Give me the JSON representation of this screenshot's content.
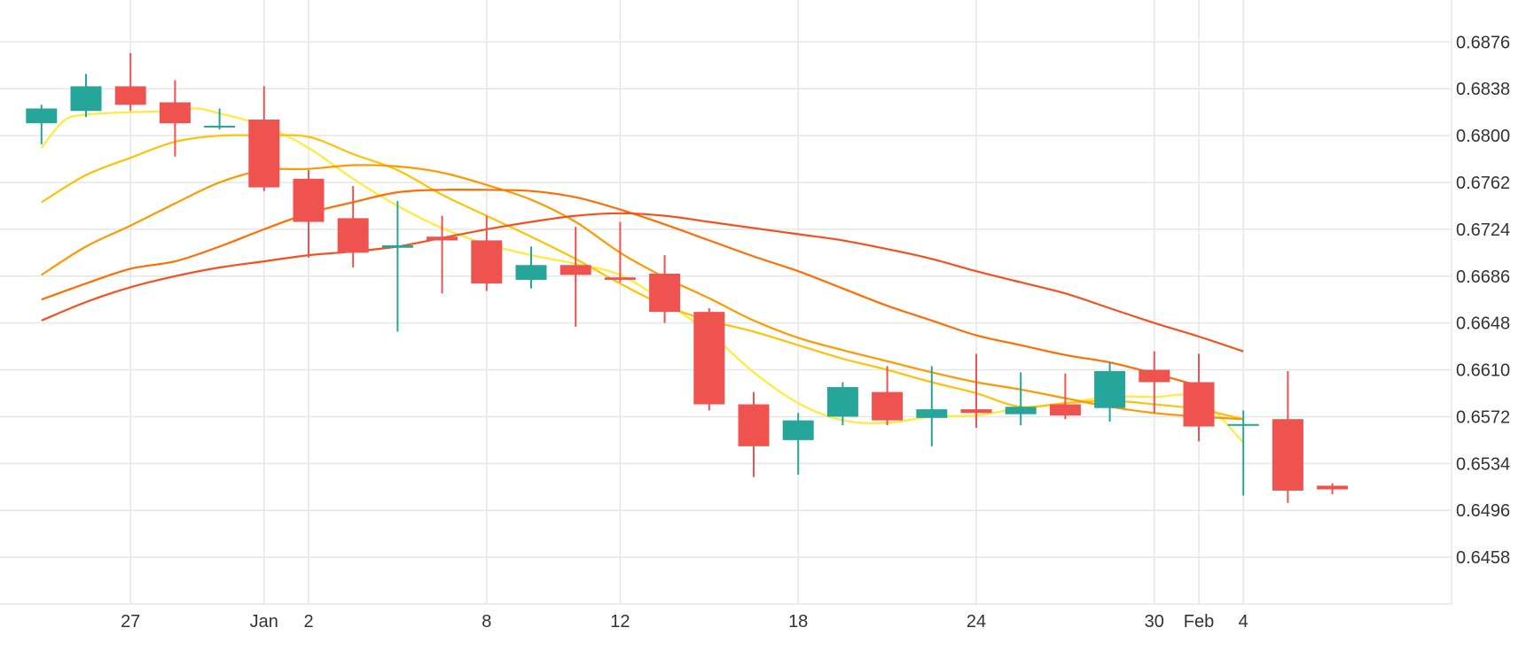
{
  "chart_data": {
    "type": "candlestick",
    "title": "",
    "xlabel": "",
    "ylabel": "",
    "ylim": [
      0.642,
      0.691
    ],
    "y_ticks": [
      0.6876,
      0.6838,
      0.68,
      0.6762,
      0.6724,
      0.6686,
      0.6648,
      0.661,
      0.6572,
      0.6534,
      0.6496,
      0.6458
    ],
    "x_ticks": [
      {
        "label": "27",
        "pos": 1.0
      },
      {
        "label": "Jan",
        "pos": 4.0
      },
      {
        "label": "2",
        "pos": 5.0
      },
      {
        "label": "8",
        "pos": 9.0
      },
      {
        "label": "12",
        "pos": 12.0
      },
      {
        "label": "18",
        "pos": 16.0
      },
      {
        "label": "24",
        "pos": 20.0
      },
      {
        "label": "30",
        "pos": 24.0
      },
      {
        "label": "Feb",
        "pos": 25.0
      },
      {
        "label": "4",
        "pos": 26.0
      }
    ],
    "grid": true,
    "legend": "none",
    "colors": {
      "up": "#26a69a",
      "down": "#ef5350",
      "grid": "#e6e6e6",
      "text": "#333333"
    },
    "candles": [
      {
        "o": 0.681,
        "h": 0.6825,
        "l": 0.6793,
        "c": 0.6822
      },
      {
        "o": 0.682,
        "h": 0.685,
        "l": 0.6815,
        "c": 0.684
      },
      {
        "o": 0.684,
        "h": 0.6867,
        "l": 0.682,
        "c": 0.6825
      },
      {
        "o": 0.6827,
        "h": 0.6845,
        "l": 0.6783,
        "c": 0.681
      },
      {
        "o": 0.6808,
        "h": 0.6822,
        "l": 0.6805,
        "c": 0.6808
      },
      {
        "o": 0.6813,
        "h": 0.684,
        "l": 0.6755,
        "c": 0.6758
      },
      {
        "o": 0.6765,
        "h": 0.6772,
        "l": 0.6701,
        "c": 0.673
      },
      {
        "o": 0.6733,
        "h": 0.6759,
        "l": 0.6693,
        "c": 0.6705
      },
      {
        "o": 0.6709,
        "h": 0.6747,
        "l": 0.6641,
        "c": 0.6711
      },
      {
        "o": 0.6718,
        "h": 0.6735,
        "l": 0.6672,
        "c": 0.6715
      },
      {
        "o": 0.6715,
        "h": 0.6735,
        "l": 0.6674,
        "c": 0.668
      },
      {
        "o": 0.6683,
        "h": 0.671,
        "l": 0.6676,
        "c": 0.6695
      },
      {
        "o": 0.6695,
        "h": 0.6726,
        "l": 0.6645,
        "c": 0.6687
      },
      {
        "o": 0.6685,
        "h": 0.673,
        "l": 0.6681,
        "c": 0.6683
      },
      {
        "o": 0.6688,
        "h": 0.6703,
        "l": 0.6648,
        "c": 0.6657
      },
      {
        "o": 0.6657,
        "h": 0.666,
        "l": 0.6577,
        "c": 0.6582
      },
      {
        "o": 0.6582,
        "h": 0.6592,
        "l": 0.6523,
        "c": 0.6548
      },
      {
        "o": 0.6553,
        "h": 0.6575,
        "l": 0.6525,
        "c": 0.6569
      },
      {
        "o": 0.6572,
        "h": 0.66,
        "l": 0.6565,
        "c": 0.6596
      },
      {
        "o": 0.6592,
        "h": 0.6613,
        "l": 0.6565,
        "c": 0.6569
      },
      {
        "o": 0.6571,
        "h": 0.6613,
        "l": 0.6548,
        "c": 0.6578
      },
      {
        "o": 0.6578,
        "h": 0.6623,
        "l": 0.6563,
        "c": 0.6575
      },
      {
        "o": 0.6574,
        "h": 0.6608,
        "l": 0.6565,
        "c": 0.658
      },
      {
        "o": 0.6582,
        "h": 0.6607,
        "l": 0.657,
        "c": 0.6573
      },
      {
        "o": 0.6579,
        "h": 0.6616,
        "l": 0.6568,
        "c": 0.6609
      },
      {
        "o": 0.661,
        "h": 0.6625,
        "l": 0.6575,
        "c": 0.66
      },
      {
        "o": 0.66,
        "h": 0.6623,
        "l": 0.6552,
        "c": 0.6564
      },
      {
        "o": 0.6566,
        "h": 0.6577,
        "l": 0.6508,
        "c": 0.6566
      },
      {
        "o": 0.657,
        "h": 0.6609,
        "l": 0.6502,
        "c": 0.6512
      },
      {
        "o": 0.6516,
        "h": 0.6518,
        "l": 0.6509,
        "c": 0.6513
      }
    ],
    "series": [
      {
        "color": "#ffeb3b",
        "points": [
          [
            -1.0,
            0.679
          ],
          [
            -0.5,
            0.6812
          ],
          [
            0.0,
            0.6817
          ],
          [
            1.0,
            0.6819
          ],
          [
            2.0,
            0.682
          ],
          [
            2.5,
            0.6822
          ],
          [
            3.0,
            0.6818
          ],
          [
            4.0,
            0.6808
          ],
          [
            5.0,
            0.679
          ],
          [
            6.0,
            0.6765
          ],
          [
            7.0,
            0.6743
          ],
          [
            8.0,
            0.6725
          ],
          [
            9.0,
            0.6712
          ],
          [
            10.0,
            0.6703
          ],
          [
            11.0,
            0.6696
          ],
          [
            12.0,
            0.6687
          ],
          [
            13.0,
            0.6665
          ],
          [
            14.0,
            0.664
          ],
          [
            15.0,
            0.6608
          ],
          [
            16.0,
            0.6583
          ],
          [
            17.0,
            0.6569
          ],
          [
            18.0,
            0.6567
          ],
          [
            19.0,
            0.6572
          ],
          [
            20.0,
            0.6573
          ],
          [
            21.0,
            0.6579
          ],
          [
            22.0,
            0.6583
          ],
          [
            23.0,
            0.6588
          ],
          [
            24.0,
            0.6588
          ],
          [
            25.0,
            0.6587
          ],
          [
            26.0,
            0.6551
          ]
        ]
      },
      {
        "color": "#ffc107",
        "points": [
          [
            -1.0,
            0.6746
          ],
          [
            0.0,
            0.6768
          ],
          [
            1.0,
            0.6782
          ],
          [
            2.0,
            0.6795
          ],
          [
            3.0,
            0.68
          ],
          [
            4.0,
            0.68
          ],
          [
            5.0,
            0.6799
          ],
          [
            6.0,
            0.6785
          ],
          [
            7.0,
            0.6772
          ],
          [
            8.0,
            0.6752
          ],
          [
            9.0,
            0.6735
          ],
          [
            10.0,
            0.6718
          ],
          [
            11.0,
            0.67
          ],
          [
            12.0,
            0.668
          ],
          [
            13.0,
            0.6662
          ],
          [
            14.0,
            0.665
          ],
          [
            15.0,
            0.6641
          ],
          [
            16.0,
            0.663
          ],
          [
            17.0,
            0.6619
          ],
          [
            18.0,
            0.661
          ],
          [
            19.0,
            0.66
          ],
          [
            20.0,
            0.6591
          ],
          [
            21.0,
            0.658
          ],
          [
            22.0,
            0.6583
          ],
          [
            23.0,
            0.6585
          ],
          [
            24.0,
            0.6582
          ],
          [
            25.0,
            0.6578
          ],
          [
            26.0,
            0.657
          ]
        ]
      },
      {
        "color": "#ff9800",
        "points": [
          [
            -1.0,
            0.6687
          ],
          [
            0.0,
            0.671
          ],
          [
            1.0,
            0.6727
          ],
          [
            2.0,
            0.6745
          ],
          [
            3.0,
            0.6762
          ],
          [
            4.0,
            0.6772
          ],
          [
            5.0,
            0.6773
          ],
          [
            6.0,
            0.6776
          ],
          [
            7.0,
            0.6775
          ],
          [
            8.0,
            0.677
          ],
          [
            9.0,
            0.676
          ],
          [
            10.0,
            0.6748
          ],
          [
            11.0,
            0.673
          ],
          [
            12.0,
            0.6705
          ],
          [
            13.0,
            0.6685
          ],
          [
            14.0,
            0.6668
          ],
          [
            15.0,
            0.665
          ],
          [
            16.0,
            0.6636
          ],
          [
            17.0,
            0.6626
          ],
          [
            18.0,
            0.6617
          ],
          [
            19.0,
            0.6608
          ],
          [
            20.0,
            0.66
          ],
          [
            21.0,
            0.6594
          ],
          [
            22.0,
            0.6587
          ],
          [
            23.0,
            0.658
          ],
          [
            24.0,
            0.6575
          ],
          [
            25.0,
            0.6572
          ],
          [
            26.0,
            0.657
          ]
        ]
      },
      {
        "color": "#ff6d00",
        "points": [
          [
            -1.0,
            0.6667
          ],
          [
            0.0,
            0.668
          ],
          [
            1.0,
            0.6692
          ],
          [
            2.0,
            0.6698
          ],
          [
            3.0,
            0.671
          ],
          [
            4.0,
            0.6724
          ],
          [
            5.0,
            0.6737
          ],
          [
            6.0,
            0.6746
          ],
          [
            7.0,
            0.6754
          ],
          [
            8.0,
            0.6756
          ],
          [
            9.0,
            0.6756
          ],
          [
            10.0,
            0.6755
          ],
          [
            11.0,
            0.675
          ],
          [
            12.0,
            0.674
          ],
          [
            13.0,
            0.6728
          ],
          [
            14.0,
            0.6715
          ],
          [
            15.0,
            0.6702
          ],
          [
            16.0,
            0.669
          ],
          [
            17.0,
            0.6676
          ],
          [
            18.0,
            0.6662
          ],
          [
            19.0,
            0.665
          ],
          [
            20.0,
            0.6638
          ],
          [
            21.0,
            0.663
          ],
          [
            22.0,
            0.6622
          ],
          [
            23.0,
            0.6616
          ],
          [
            24.0,
            0.6607
          ],
          [
            25.0,
            0.6597
          ]
        ]
      },
      {
        "color": "#f4511e",
        "points": [
          [
            -1.0,
            0.665
          ],
          [
            0.0,
            0.6665
          ],
          [
            1.0,
            0.6677
          ],
          [
            2.0,
            0.6686
          ],
          [
            3.0,
            0.6693
          ],
          [
            4.0,
            0.6698
          ],
          [
            5.0,
            0.6703
          ],
          [
            6.0,
            0.6706
          ],
          [
            7.0,
            0.671
          ],
          [
            8.0,
            0.6717
          ],
          [
            9.0,
            0.6724
          ],
          [
            10.0,
            0.673
          ],
          [
            11.0,
            0.6735
          ],
          [
            12.0,
            0.6737
          ],
          [
            13.0,
            0.6735
          ],
          [
            14.0,
            0.673
          ],
          [
            15.0,
            0.6725
          ],
          [
            16.0,
            0.672
          ],
          [
            17.0,
            0.6715
          ],
          [
            18.0,
            0.6708
          ],
          [
            19.0,
            0.67
          ],
          [
            20.0,
            0.669
          ],
          [
            21.0,
            0.6681
          ],
          [
            22.0,
            0.6672
          ],
          [
            23.0,
            0.666
          ],
          [
            24.0,
            0.6648
          ],
          [
            25.0,
            0.6637
          ],
          [
            26.0,
            0.6625
          ]
        ]
      }
    ]
  }
}
